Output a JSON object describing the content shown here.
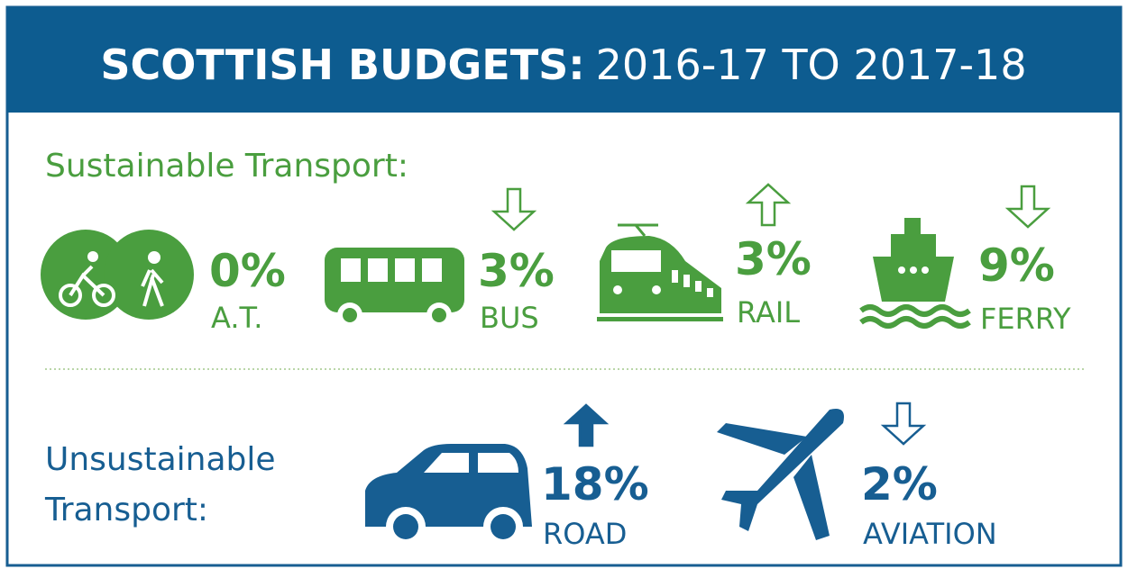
{
  "header": {
    "title_bold": "SCOTTISH BUDGETS:",
    "title_light": "2016-17 TO 2017-18"
  },
  "sections": [
    {
      "heading": [
        "Sustainable Transport:"
      ],
      "color": "#4a9e3f",
      "items": [
        {
          "percent": "0%",
          "label": "A.T."
        },
        {
          "percent": "3%",
          "label": "BUS",
          "direction": "down",
          "arrow": "outline"
        },
        {
          "percent": "3%",
          "label": "RAIL",
          "direction": "up",
          "arrow": "outline"
        },
        {
          "percent": "9%",
          "label": "FERRY",
          "direction": "down",
          "arrow": "outline"
        }
      ]
    },
    {
      "heading": [
        "Unsustainable",
        "Transport:"
      ],
      "color": "#175e92",
      "items": [
        {
          "percent": "18%",
          "label": "ROAD",
          "direction": "up",
          "arrow": "filled"
        },
        {
          "percent": "2%",
          "label": "AVIATION",
          "direction": "down",
          "arrow": "outline"
        }
      ]
    }
  ]
}
